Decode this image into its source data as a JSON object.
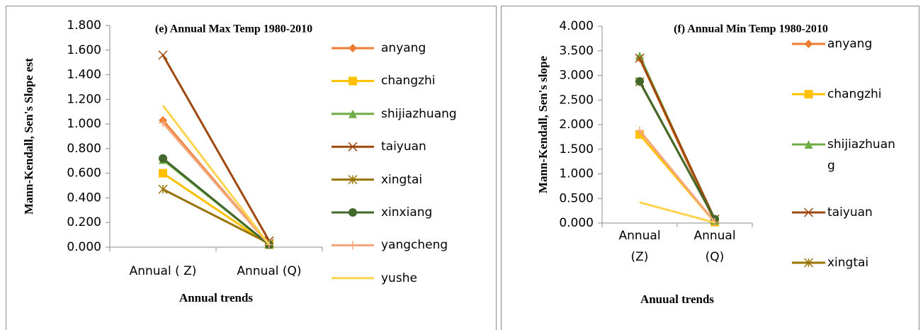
{
  "chart_data": [
    {
      "type": "line",
      "title": "(e) Annual Max Temp 1980-2010",
      "x_label": "Annual trends",
      "y_label": "Mann-Kendall, Sen's Slope est",
      "categories": [
        "Annual ( Z)",
        "Annual (Q)"
      ],
      "legend": "right",
      "ylim": [
        0,
        1.8
      ],
      "yticks": [
        {
          "value": 0,
          "label": "0.000"
        },
        {
          "value": 0.2,
          "label": "0.200"
        },
        {
          "value": 0.4,
          "label": "0.400"
        },
        {
          "value": 0.6,
          "label": "0.600"
        },
        {
          "value": 0.8,
          "label": "0.800"
        },
        {
          "value": 1.0,
          "label": "1.000"
        },
        {
          "value": 1.2,
          "label": "1.200"
        },
        {
          "value": 1.4,
          "label": "1.400"
        },
        {
          "value": 1.6,
          "label": "1.600"
        },
        {
          "value": 1.8,
          "label": "1.800"
        }
      ],
      "series": [
        {
          "name": "anyang",
          "color": "#ed7d31",
          "marker": "diamond",
          "values": [
            1.03,
            0.02
          ]
        },
        {
          "name": "changzhi",
          "color": "#ffc000",
          "marker": "square",
          "values": [
            0.6,
            0.02
          ]
        },
        {
          "name": "shijiazhuang",
          "color": "#70ad47",
          "marker": "triangle",
          "values": [
            0.71,
            0.02
          ]
        },
        {
          "name": "taiyuan",
          "color": "#9e480e",
          "marker": "x",
          "values": [
            1.56,
            0.05
          ]
        },
        {
          "name": "xingtai",
          "color": "#997300",
          "marker": "star",
          "values": [
            0.47,
            0.03
          ]
        },
        {
          "name": "xinxiang",
          "color": "#43682b",
          "marker": "circle",
          "values": [
            0.72,
            0.02
          ]
        },
        {
          "name": "yangcheng",
          "color": "#f4a57a",
          "marker": "plus",
          "values": [
            1.01,
            0.02
          ]
        },
        {
          "name": "yushe",
          "color": "#ffd34d",
          "marker": "dash",
          "values": [
            1.15,
            0.02
          ]
        }
      ]
    },
    {
      "type": "line",
      "title": "(f) Annual Min Temp 1980-2010",
      "x_label": "Anuual trends",
      "y_label": "Mann-Kendall, Sen's slope",
      "categories": [
        "Annual (Z)",
        "Annual (Q)"
      ],
      "legend": "right",
      "ylim": [
        0,
        4
      ],
      "yticks": [
        {
          "value": 0,
          "label": "0.000"
        },
        {
          "value": 0.5,
          "label": "0.500"
        },
        {
          "value": 1.0,
          "label": "1.000"
        },
        {
          "value": 1.5,
          "label": "1.500"
        },
        {
          "value": 2.0,
          "label": "2.000"
        },
        {
          "value": 2.5,
          "label": "2.500"
        },
        {
          "value": 3.0,
          "label": "3.000"
        },
        {
          "value": 3.5,
          "label": "3.500"
        },
        {
          "value": 4.0,
          "label": "4.000"
        }
      ],
      "series": [
        {
          "name": "anyang",
          "color": "#ed7d31",
          "marker": "diamond",
          "values": [
            3.35,
            0.02
          ]
        },
        {
          "name": "changzhi",
          "color": "#ffc000",
          "marker": "square",
          "values": [
            1.8,
            0.02
          ]
        },
        {
          "name": "shijiazhuang",
          "color": "#70ad47",
          "marker": "triangle",
          "values": [
            3.4,
            0.05
          ]
        },
        {
          "name": "taiyuan",
          "color": "#9e480e",
          "marker": "x",
          "values": [
            3.35,
            0.08
          ]
        },
        {
          "name": "xingtai",
          "color": "#997300",
          "marker": "star",
          "values": [
            2.87,
            0.08
          ]
        },
        {
          "color": "#43682b",
          "marker": "circle",
          "values": [
            2.88,
            0.08
          ]
        },
        {
          "color": "#f4a57a",
          "marker": "plus",
          "values": [
            1.88,
            0.02
          ]
        },
        {
          "color": "#ffd34d",
          "marker": "dash",
          "values": [
            0.42,
            0.01
          ]
        }
      ]
    }
  ]
}
